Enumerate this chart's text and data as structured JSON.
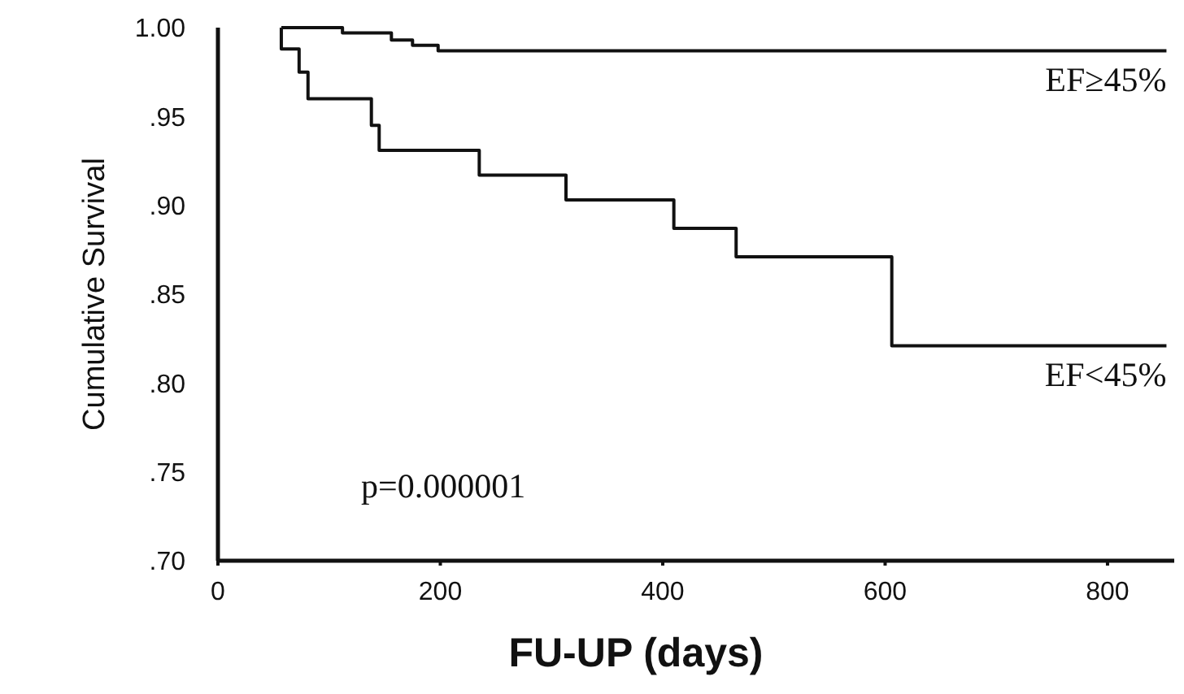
{
  "chart_data": {
    "type": "step",
    "xlabel": "FU-UP (days)",
    "ylabel": "Cumulative Survival",
    "xlim": [
      0,
      860
    ],
    "xticks": [
      0,
      200,
      400,
      600,
      800
    ],
    "ylim": [
      0.7,
      1.0
    ],
    "yticks": [
      {
        "value": 1.0,
        "label": "1.00"
      },
      {
        "value": 0.95,
        "label": ".95"
      },
      {
        "value": 0.9,
        "label": ".90"
      },
      {
        "value": 0.85,
        "label": ".85"
      },
      {
        "value": 0.8,
        "label": ".80"
      },
      {
        "value": 0.75,
        "label": ".75"
      },
      {
        "value": 0.7,
        "label": ".70"
      }
    ],
    "grid": false,
    "marker": "none",
    "line_style": "solid",
    "annotations": [
      "p=0.000001"
    ],
    "series": [
      {
        "name": "EF≥45%",
        "color": "#111111",
        "x": [
          57,
          112,
          156,
          175,
          198,
          853
        ],
        "values": [
          1.0,
          0.997,
          0.993,
          0.99,
          0.987,
          0.987
        ]
      },
      {
        "name": "EF<45%",
        "color": "#111111",
        "x": [
          57,
          57,
          73,
          81,
          138,
          145,
          235,
          313,
          410,
          466,
          606,
          853
        ],
        "values": [
          1.0,
          0.988,
          0.975,
          0.96,
          0.945,
          0.931,
          0.917,
          0.903,
          0.887,
          0.871,
          0.821,
          0.821
        ]
      }
    ]
  }
}
